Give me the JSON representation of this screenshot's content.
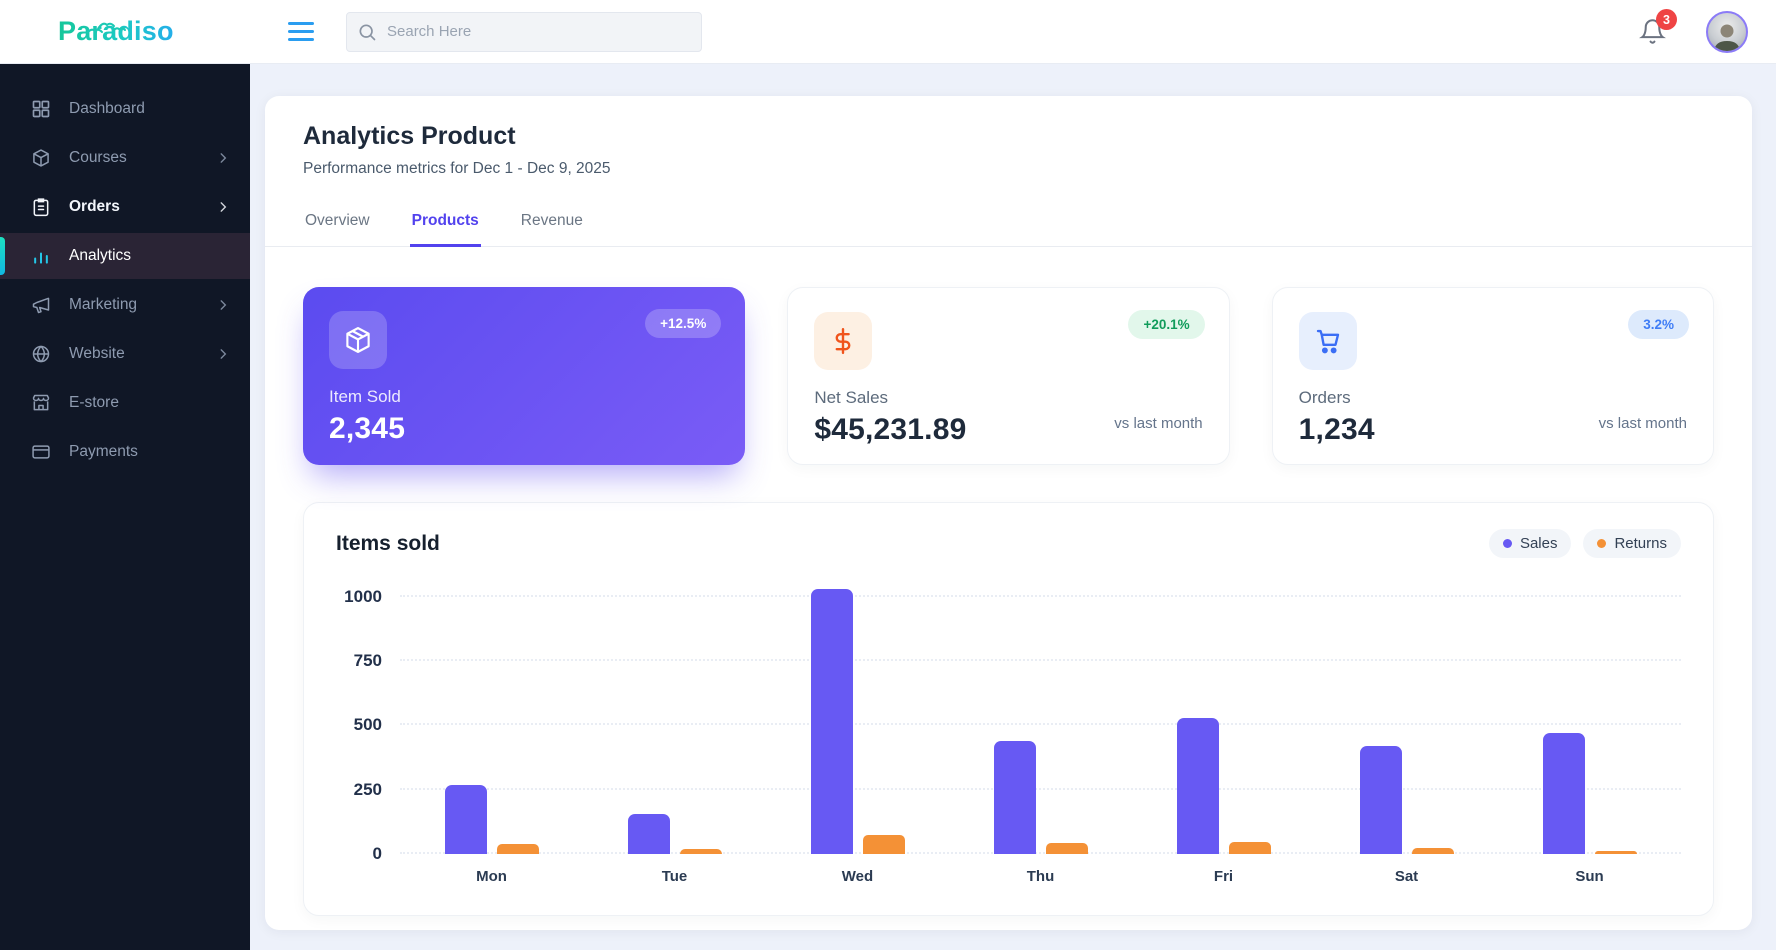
{
  "header": {
    "logo_text": "Paradiso",
    "search_placeholder": "Search Here",
    "notification_count": "3"
  },
  "sidebar": {
    "items": [
      {
        "label": "Dashboard",
        "has_submenu": false,
        "active": false
      },
      {
        "label": "Courses",
        "has_submenu": true,
        "active": false
      },
      {
        "label": "Orders",
        "has_submenu": true,
        "active": false,
        "highlighted": true
      },
      {
        "label": "Analytics",
        "has_submenu": false,
        "active": true
      },
      {
        "label": "Marketing",
        "has_submenu": true,
        "active": false
      },
      {
        "label": "Website",
        "has_submenu": true,
        "active": false
      },
      {
        "label": "E-store",
        "has_submenu": false,
        "active": false
      },
      {
        "label": "Payments",
        "has_submenu": false,
        "active": false
      }
    ]
  },
  "page": {
    "title": "Analytics Product",
    "subtitle": "Performance metrics for Dec 1 - Dec 9, 2025"
  },
  "tabs": [
    {
      "label": "Overview",
      "active": false
    },
    {
      "label": "Products",
      "active": true
    },
    {
      "label": "Revenue",
      "active": false
    }
  ],
  "stats": [
    {
      "label": "Item Sold",
      "value": "2,345",
      "badge": "+12.5%",
      "icon": "package-icon",
      "variant": "primary"
    },
    {
      "label": "Net Sales",
      "value": "$45,231.89",
      "badge": "+20.1%",
      "note": "vs last month",
      "icon": "dollar-icon",
      "badge_color": "#119c5b"
    },
    {
      "label": "Orders",
      "value": "1,234",
      "badge": "3.2%",
      "note": "vs last month",
      "icon": "cart-icon",
      "badge_color": "#3f7df6"
    }
  ],
  "colors": {
    "accent_purple": "#5242ee",
    "sidebar_accent_teal": "#1ce0c0",
    "badge_red": "#ef4444"
  },
  "chart_data": {
    "type": "bar",
    "title": "Items sold",
    "categories": [
      "Mon",
      "Tue",
      "Wed",
      "Thu",
      "Fri",
      "Sat",
      "Sun"
    ],
    "series": [
      {
        "name": "Sales",
        "color": "#6759f3",
        "values": [
          270,
          155,
          1030,
          440,
          530,
          420,
          470
        ]
      },
      {
        "name": "Returns",
        "color": "#f49136",
        "values": [
          40,
          18,
          75,
          42,
          48,
          25,
          12
        ]
      }
    ],
    "xlabel": "",
    "ylabel": "",
    "yticks": [
      0,
      250,
      500,
      750,
      1000
    ],
    "ylim": [
      0,
      1050
    ],
    "grid": "horizontal-dotted",
    "legend_position": "top-right"
  }
}
